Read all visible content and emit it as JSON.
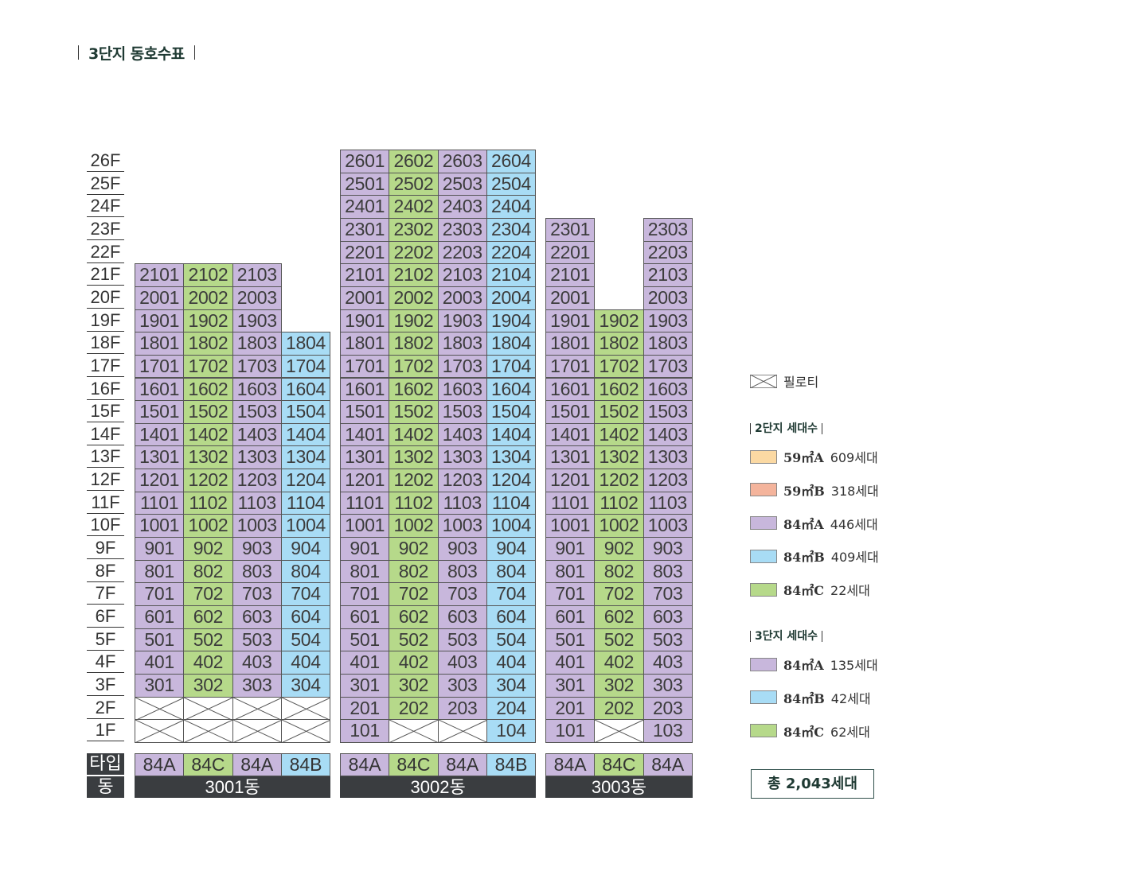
{
  "title": "3단지 동호수표",
  "floors": [
    "26F",
    "25F",
    "24F",
    "23F",
    "22F",
    "21F",
    "20F",
    "19F",
    "18F",
    "17F",
    "16F",
    "15F",
    "14F",
    "13F",
    "12F",
    "11F",
    "10F",
    "9F",
    "8F",
    "7F",
    "6F",
    "5F",
    "4F",
    "3F",
    "2F",
    "1F"
  ],
  "row_headers": {
    "type": "타입",
    "dong": "동"
  },
  "buildings": [
    {
      "name": "3001동",
      "types": [
        "84A",
        "84C",
        "84A",
        "84B"
      ],
      "type_keys": [
        "A",
        "C",
        "A",
        "B"
      ],
      "columns": [
        {
          "top_floor": 21,
          "pilotis": [
            1,
            2
          ]
        },
        {
          "top_floor": 21,
          "pilotis": [
            1,
            2
          ]
        },
        {
          "top_floor": 21,
          "pilotis": [
            1,
            2
          ]
        },
        {
          "top_floor": 18,
          "pilotis": [
            1,
            2
          ]
        }
      ]
    },
    {
      "name": "3002동",
      "types": [
        "84A",
        "84C",
        "84A",
        "84B"
      ],
      "type_keys": [
        "A",
        "C",
        "A",
        "B"
      ],
      "columns": [
        {
          "top_floor": 26,
          "pilotis": []
        },
        {
          "top_floor": 26,
          "pilotis": [
            1
          ]
        },
        {
          "top_floor": 26,
          "pilotis": [
            1
          ]
        },
        {
          "top_floor": 26,
          "pilotis": []
        }
      ]
    },
    {
      "name": "3003동",
      "types": [
        "84A",
        "84C",
        "84A"
      ],
      "type_keys": [
        "A",
        "C",
        "A"
      ],
      "columns": [
        {
          "top_floor": 23,
          "pilotis": []
        },
        {
          "top_floor": 19,
          "pilotis": [
            1
          ]
        },
        {
          "top_floor": 23,
          "pilotis": []
        }
      ]
    }
  ],
  "colors": {
    "A": "#c8b7dc",
    "B": "#a8dcf5",
    "C": "#b6d98a",
    "59A": "#fbd9a3",
    "59B": "#f4b49c"
  },
  "legend": {
    "pilotis_label": "필로티",
    "complex2": {
      "heading": "2단지 세대수",
      "items": [
        {
          "area": "59㎡A",
          "count": "609세대",
          "color_key": "59A"
        },
        {
          "area": "59㎡B",
          "count": "318세대",
          "color_key": "59B"
        },
        {
          "area": "84㎡A",
          "count": "446세대",
          "color_key": "A"
        },
        {
          "area": "84㎡B",
          "count": "409세대",
          "color_key": "B"
        },
        {
          "area": "84㎡C",
          "count": "22세대",
          "color_key": "C"
        }
      ]
    },
    "complex3": {
      "heading": "3단지 세대수",
      "items": [
        {
          "area": "84㎡A",
          "count": "135세대",
          "color_key": "A"
        },
        {
          "area": "84㎡B",
          "count": "42세대",
          "color_key": "B"
        },
        {
          "area": "84㎡C",
          "count": "62세대",
          "color_key": "C"
        }
      ]
    },
    "total": "총 2,043세대"
  }
}
